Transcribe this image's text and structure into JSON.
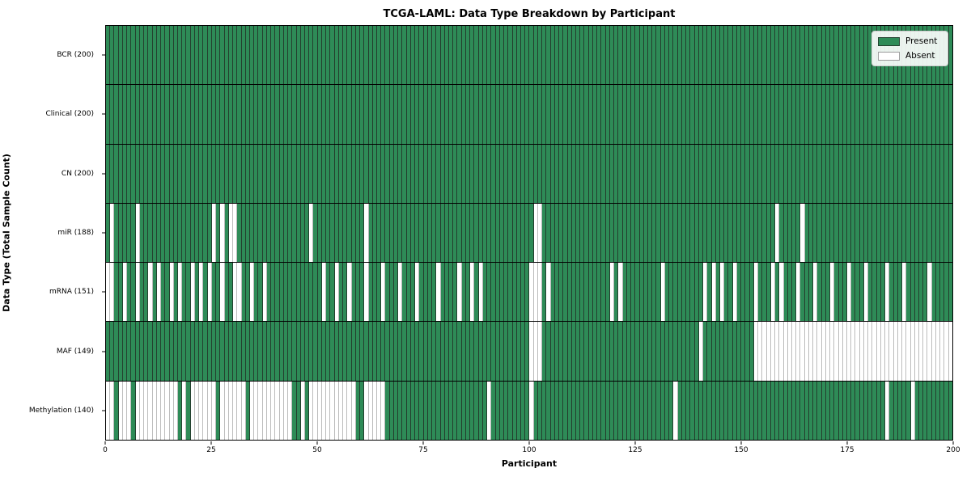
{
  "title": "TCGA-LAML: Data Type Breakdown by Participant",
  "colors": {
    "present": "#2e8b57",
    "absent": "#ffffff",
    "present_edge": "#24402f",
    "absent_edge": "#bdbdbd",
    "spine": "#000000",
    "legend_border": "#cccccc"
  },
  "chart_data": {
    "type": "heatmap",
    "title": "TCGA-LAML: Data Type Breakdown by Participant",
    "xlabel": "Participant",
    "ylabel": "Data Type (Total Sample Count)",
    "x_ticks": [
      0,
      25,
      50,
      75,
      100,
      125,
      150,
      175,
      200
    ],
    "x_range": [
      0,
      200
    ],
    "n_participants": 200,
    "grid": false,
    "legend": {
      "position": "upper right",
      "present": "Present",
      "absent": "Absent"
    },
    "rows": [
      {
        "data_type": "BCR",
        "label": "BCR (200)",
        "present_count": 200,
        "absent_participants": []
      },
      {
        "data_type": "Clinical",
        "label": "Clinical (200)",
        "present_count": 200,
        "absent_participants": []
      },
      {
        "data_type": "CN",
        "label": "CN (200)",
        "present_count": 200,
        "absent_participants": []
      },
      {
        "data_type": "miR",
        "label": "miR (188)",
        "present_count": 188,
        "absent_participants": [
          1,
          7,
          25,
          27,
          29,
          30,
          48,
          61,
          101,
          102,
          158,
          164
        ]
      },
      {
        "data_type": "mRNA",
        "label": "mRNA (151)",
        "present_count": 151,
        "absent_participants": [
          0,
          1,
          4,
          7,
          10,
          12,
          15,
          17,
          20,
          22,
          24,
          27,
          30,
          31,
          34,
          37,
          51,
          54,
          57,
          61,
          65,
          69,
          73,
          78,
          83,
          86,
          88,
          100,
          101,
          102,
          104,
          119,
          121,
          131,
          141,
          143,
          145,
          148,
          153,
          157,
          159,
          163,
          167,
          171,
          175,
          179,
          184,
          188,
          194
        ]
      },
      {
        "data_type": "MAF",
        "label": "MAF (149)",
        "present_count": 149,
        "absent_participants": [
          100,
          101,
          102,
          140,
          153,
          154,
          155,
          156,
          157,
          158,
          159,
          160,
          161,
          162,
          163,
          164,
          165,
          166,
          167,
          168,
          169,
          170,
          171,
          172,
          173,
          174,
          175,
          176,
          177,
          178,
          179,
          180,
          181,
          182,
          183,
          184,
          185,
          186,
          187,
          188,
          189,
          190,
          191,
          192,
          193,
          194,
          195,
          196,
          197,
          198,
          199
        ]
      },
      {
        "data_type": "Methylation",
        "label": "Methylation (140)",
        "present_count": 140,
        "absent_participants": [
          0,
          1,
          3,
          4,
          5,
          7,
          8,
          9,
          10,
          11,
          12,
          13,
          14,
          15,
          16,
          18,
          20,
          21,
          22,
          23,
          24,
          25,
          27,
          28,
          29,
          30,
          31,
          32,
          34,
          35,
          36,
          37,
          38,
          39,
          40,
          41,
          42,
          43,
          46,
          48,
          49,
          50,
          51,
          52,
          53,
          54,
          55,
          56,
          57,
          58,
          61,
          62,
          63,
          64,
          65,
          90,
          100,
          134,
          184,
          190
        ]
      }
    ]
  }
}
